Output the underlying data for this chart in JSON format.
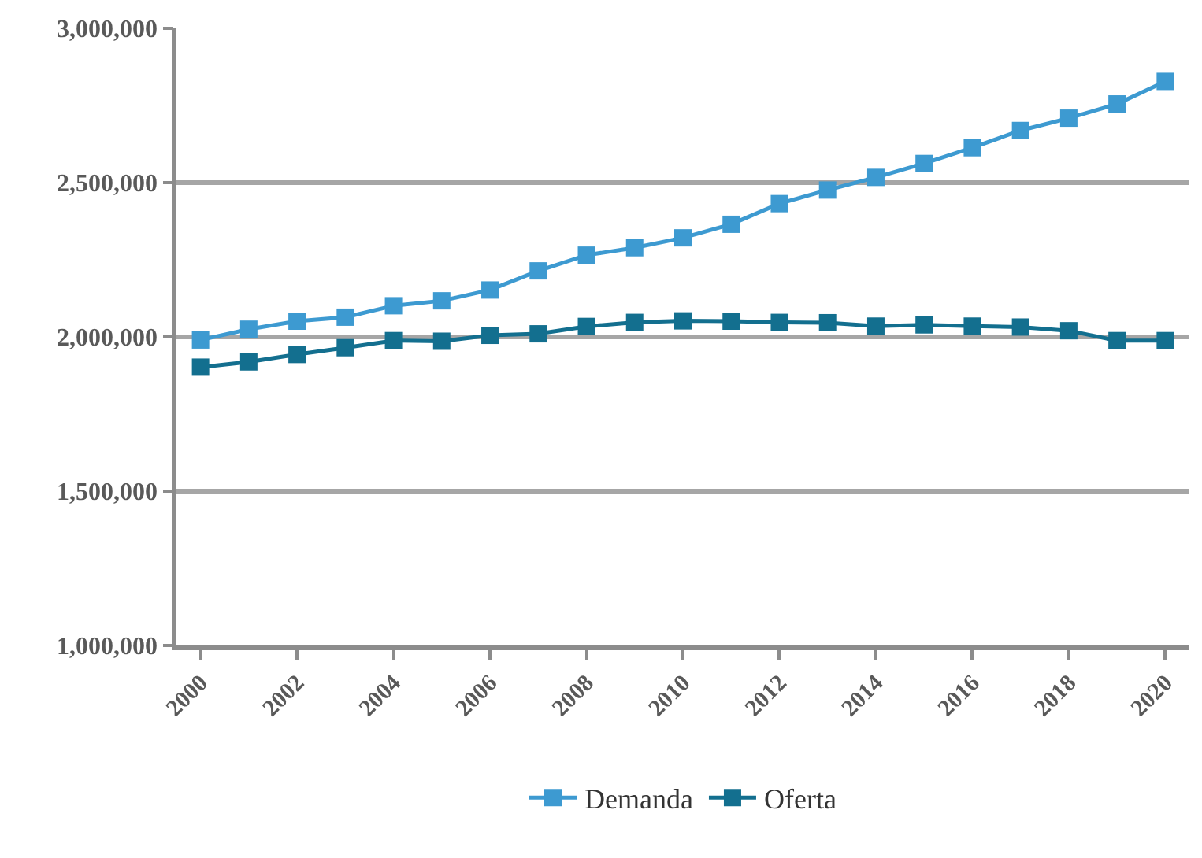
{
  "chart_data": {
    "type": "line",
    "categories": [
      "2000",
      null,
      "2002",
      null,
      "2004",
      null,
      "2006",
      null,
      "2008",
      null,
      "2010",
      null,
      "2012",
      null,
      "2014",
      null,
      "2016",
      null,
      "2018",
      null,
      "2020"
    ],
    "series": [
      {
        "name": "Demanda",
        "color": "#3d9ad1",
        "values": [
          1990000,
          2025000,
          2051000,
          2064000,
          2101000,
          2117000,
          2152000,
          2214000,
          2265000,
          2289000,
          2321000,
          2365000,
          2432000,
          2476000,
          2517000,
          2562000,
          2613000,
          2669000,
          2709000,
          2755000,
          2828000
        ]
      },
      {
        "name": "Oferta",
        "color": "#136f8f",
        "values": [
          1902000,
          1919000,
          1943000,
          1965000,
          1988000,
          1986000,
          2005000,
          2010000,
          2034000,
          2047000,
          2052000,
          2051000,
          2047000,
          2046000,
          2035000,
          2039000,
          2035000,
          2032000,
          2020000,
          1988000,
          1988000
        ]
      }
    ],
    "ylim": [
      1000000,
      3000000
    ],
    "yticks": [
      {
        "value": 1000000,
        "label": "1,000,000"
      },
      {
        "value": 1500000,
        "label": "1,500,000"
      },
      {
        "value": 2000000,
        "label": "2,000,000"
      },
      {
        "value": 2500000,
        "label": "2,500,000"
      },
      {
        "value": 3000000,
        "label": "3,000,000"
      }
    ],
    "grid": "y",
    "legend": "bottom",
    "marker": "square",
    "line_style": "solid"
  }
}
